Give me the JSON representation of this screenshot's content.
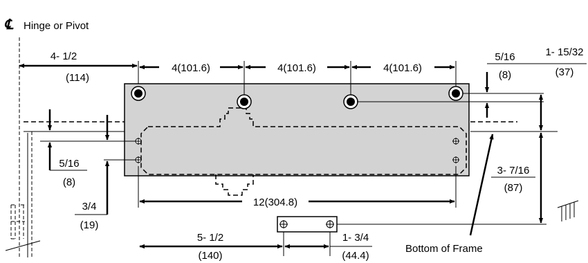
{
  "title": {
    "symbol": "℄",
    "text": "Hinge or Pivot"
  },
  "labels": {
    "frame": "Bottom of Frame"
  },
  "dims": {
    "hinge_offset": {
      "value": "4- 1/2",
      "metric": "(114)"
    },
    "spacing_1": "4(101.6)",
    "spacing_2": "4(101.6)",
    "spacing_3": "4(101.6)",
    "top_offset": {
      "value": "5/16",
      "metric": "(8)"
    },
    "body_height": {
      "value": "1- 15/32",
      "metric": "(37)"
    },
    "left_hole_offset": {
      "value": "5/16",
      "metric": "(8)"
    },
    "left_hole_spacing": {
      "value": "3/4",
      "metric": "(19)"
    },
    "body_length": "12(304.8)",
    "arm_offset": {
      "value": "5- 1/2",
      "metric": "(140)"
    },
    "arm_width": {
      "value": "1- 3/4",
      "metric": "(44.4)"
    },
    "arm_depth": {
      "value": "3- 7/16",
      "metric": "(87)"
    }
  }
}
